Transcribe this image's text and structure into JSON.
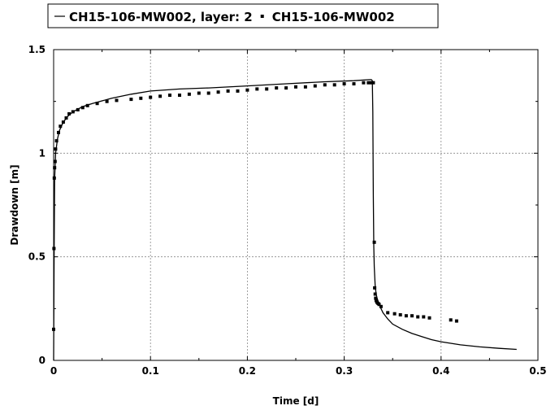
{
  "chart_data": {
    "type": "scatter",
    "title": "",
    "xlabel": "Time [d]",
    "ylabel": "Drawdown [m]",
    "xlim": [
      0,
      0.5
    ],
    "ylim": [
      0,
      1.5
    ],
    "x_ticks": [
      "0",
      "0.1",
      "0.2",
      "0.3",
      "0.4",
      "0.5"
    ],
    "y_ticks": [
      "0",
      "0.5",
      "1",
      "1.5"
    ],
    "grid": true,
    "legend_position": "top",
    "series": [
      {
        "name": "CH15-106-MW002, layer: 2",
        "type": "line",
        "color": "#000000",
        "x": [
          0,
          0.0005,
          0.001,
          0.002,
          0.004,
          0.006,
          0.01,
          0.015,
          0.02,
          0.03,
          0.04,
          0.06,
          0.08,
          0.1,
          0.13,
          0.16,
          0.2,
          0.24,
          0.28,
          0.31,
          0.326,
          0.328,
          0.329,
          0.3295,
          0.33,
          0.3305,
          0.331,
          0.332,
          0.333,
          0.334,
          0.336,
          0.338,
          0.34,
          0.345,
          0.35,
          0.36,
          0.37,
          0.38,
          0.39,
          0.4,
          0.42,
          0.44,
          0.46,
          0.478
        ],
        "y": [
          0,
          0.5,
          0.87,
          1.0,
          1.07,
          1.11,
          1.15,
          1.18,
          1.2,
          1.225,
          1.24,
          1.265,
          1.285,
          1.3,
          1.31,
          1.315,
          1.325,
          1.335,
          1.345,
          1.35,
          1.355,
          1.355,
          1.35,
          1.2,
          0.8,
          0.55,
          0.45,
          0.36,
          0.32,
          0.3,
          0.27,
          0.25,
          0.23,
          0.2,
          0.175,
          0.15,
          0.13,
          0.115,
          0.1,
          0.09,
          0.075,
          0.065,
          0.058,
          0.053
        ]
      },
      {
        "name": "CH15-106-MW002",
        "type": "scatter",
        "color": "#000000",
        "x": [
          0,
          0.0003,
          0.0007,
          0.001,
          0.0015,
          0.002,
          0.003,
          0.005,
          0.007,
          0.01,
          0.013,
          0.016,
          0.02,
          0.025,
          0.03,
          0.035,
          0.045,
          0.055,
          0.065,
          0.08,
          0.09,
          0.1,
          0.11,
          0.12,
          0.13,
          0.14,
          0.15,
          0.16,
          0.17,
          0.18,
          0.19,
          0.2,
          0.21,
          0.22,
          0.23,
          0.24,
          0.25,
          0.26,
          0.27,
          0.28,
          0.29,
          0.3,
          0.31,
          0.32,
          0.325,
          0.328,
          0.33,
          0.331,
          0.3315,
          0.332,
          0.3325,
          0.333,
          0.3335,
          0.334,
          0.335,
          0.336,
          0.338,
          0.345,
          0.352,
          0.358,
          0.364,
          0.37,
          0.376,
          0.382,
          0.388,
          0.41,
          0.416
        ],
        "y": [
          0.15,
          0.54,
          0.88,
          0.93,
          0.96,
          1.02,
          1.06,
          1.1,
          1.13,
          1.15,
          1.17,
          1.19,
          1.2,
          1.21,
          1.22,
          1.23,
          1.24,
          1.25,
          1.255,
          1.26,
          1.265,
          1.27,
          1.275,
          1.28,
          1.28,
          1.285,
          1.29,
          1.29,
          1.295,
          1.3,
          1.3,
          1.305,
          1.31,
          1.31,
          1.315,
          1.315,
          1.32,
          1.32,
          1.325,
          1.33,
          1.33,
          1.335,
          1.335,
          1.34,
          1.34,
          1.34,
          1.34,
          0.57,
          0.35,
          0.32,
          0.3,
          0.29,
          0.285,
          0.28,
          0.275,
          0.27,
          0.26,
          0.23,
          0.225,
          0.22,
          0.215,
          0.215,
          0.21,
          0.21,
          0.205,
          0.195,
          0.19
        ]
      }
    ]
  }
}
